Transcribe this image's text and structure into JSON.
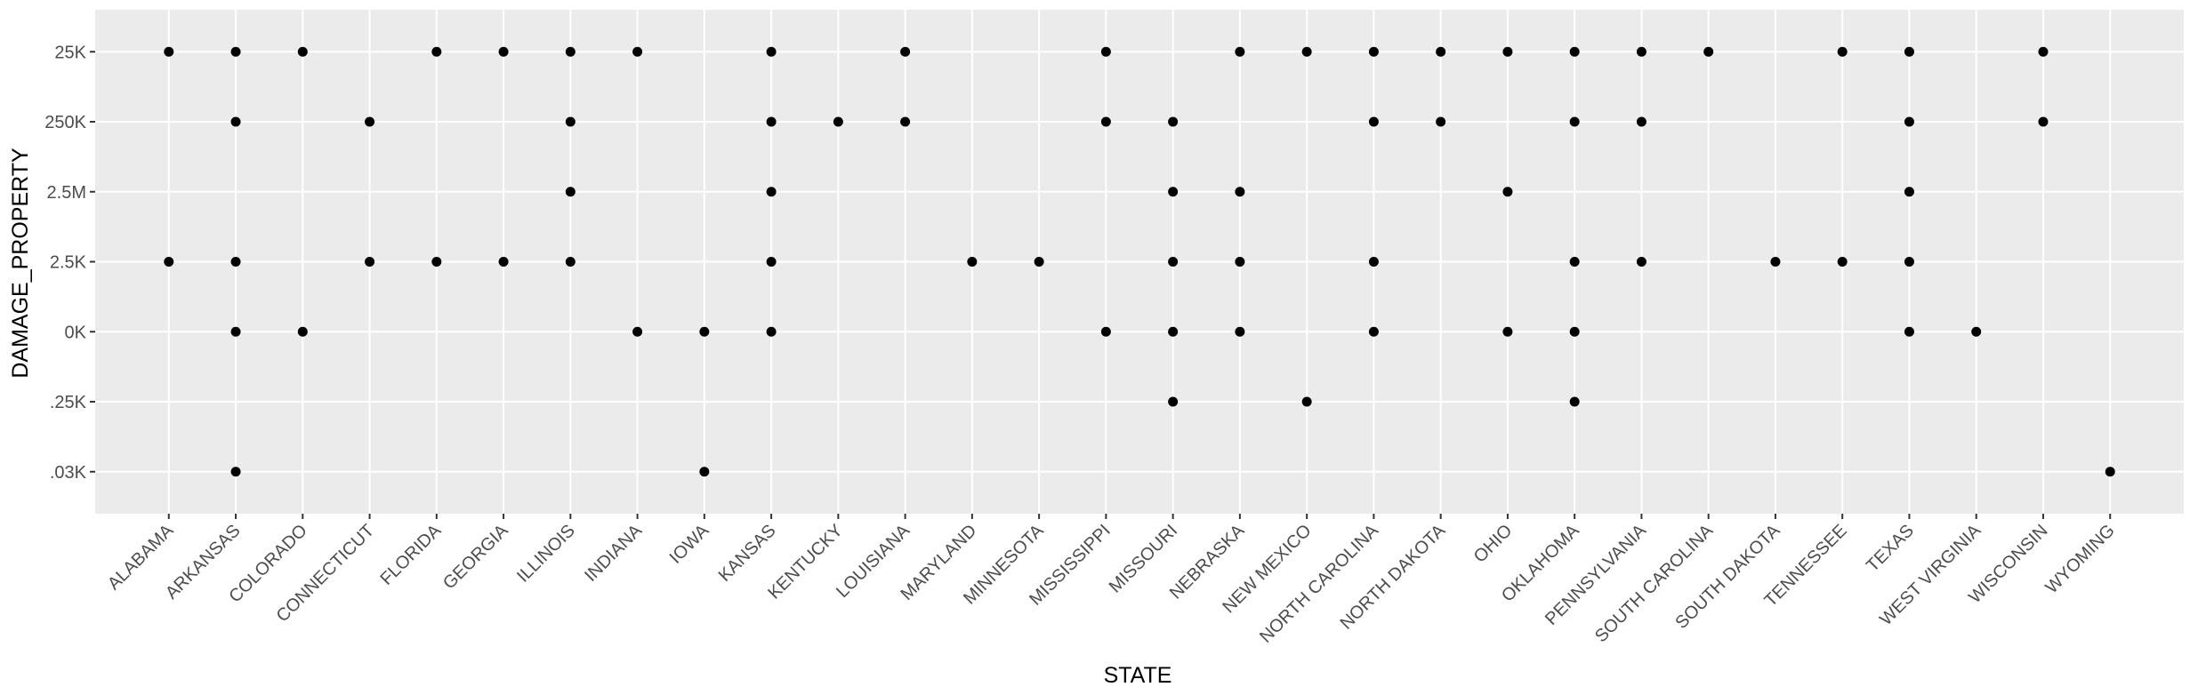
{
  "chart_data": {
    "type": "scatter",
    "xlabel": "STATE",
    "ylabel": "DAMAGE_PROPERTY",
    "grid": true,
    "categories": [
      "ALABAMA",
      "ARKANSAS",
      "COLORADO",
      "CONNECTICUT",
      "FLORIDA",
      "GEORGIA",
      "ILLINOIS",
      "INDIANA",
      "IOWA",
      "KANSAS",
      "KENTUCKY",
      "LOUISIANA",
      "MARYLAND",
      "MINNESOTA",
      "MISSISSIPPI",
      "MISSOURI",
      "NEBRASKA",
      "NEW MEXICO",
      "NORTH CAROLINA",
      "NORTH DAKOTA",
      "OHIO",
      "OKLAHOMA",
      "PENNSYLVANIA",
      "SOUTH CAROLINA",
      "SOUTH DAKOTA",
      "TENNESSEE",
      "TEXAS",
      "WEST VIRGINIA",
      "WISCONSIN",
      "WYOMING"
    ],
    "y_levels": [
      ".03K",
      ".25K",
      "0K",
      "2.5K",
      "2.5M",
      "250K",
      "25K"
    ],
    "points": [
      {
        "x": "ALABAMA",
        "y": "25K"
      },
      {
        "x": "ALABAMA",
        "y": "2.5K"
      },
      {
        "x": "ARKANSAS",
        "y": "25K"
      },
      {
        "x": "ARKANSAS",
        "y": "250K"
      },
      {
        "x": "ARKANSAS",
        "y": "2.5K"
      },
      {
        "x": "ARKANSAS",
        "y": "0K"
      },
      {
        "x": "ARKANSAS",
        "y": ".03K"
      },
      {
        "x": "COLORADO",
        "y": "25K"
      },
      {
        "x": "COLORADO",
        "y": "0K"
      },
      {
        "x": "CONNECTICUT",
        "y": "250K"
      },
      {
        "x": "CONNECTICUT",
        "y": "2.5K"
      },
      {
        "x": "FLORIDA",
        "y": "25K"
      },
      {
        "x": "FLORIDA",
        "y": "2.5K"
      },
      {
        "x": "GEORGIA",
        "y": "25K"
      },
      {
        "x": "GEORGIA",
        "y": "2.5K"
      },
      {
        "x": "ILLINOIS",
        "y": "25K"
      },
      {
        "x": "ILLINOIS",
        "y": "250K"
      },
      {
        "x": "ILLINOIS",
        "y": "2.5M"
      },
      {
        "x": "ILLINOIS",
        "y": "2.5K"
      },
      {
        "x": "INDIANA",
        "y": "25K"
      },
      {
        "x": "INDIANA",
        "y": "0K"
      },
      {
        "x": "IOWA",
        "y": "0K"
      },
      {
        "x": "IOWA",
        "y": ".03K"
      },
      {
        "x": "KANSAS",
        "y": "25K"
      },
      {
        "x": "KANSAS",
        "y": "250K"
      },
      {
        "x": "KANSAS",
        "y": "2.5M"
      },
      {
        "x": "KANSAS",
        "y": "2.5K"
      },
      {
        "x": "KANSAS",
        "y": "0K"
      },
      {
        "x": "KENTUCKY",
        "y": "250K"
      },
      {
        "x": "LOUISIANA",
        "y": "25K"
      },
      {
        "x": "LOUISIANA",
        "y": "250K"
      },
      {
        "x": "MARYLAND",
        "y": "2.5K"
      },
      {
        "x": "MINNESOTA",
        "y": "2.5K"
      },
      {
        "x": "MISSISSIPPI",
        "y": "25K"
      },
      {
        "x": "MISSISSIPPI",
        "y": "250K"
      },
      {
        "x": "MISSISSIPPI",
        "y": "0K"
      },
      {
        "x": "MISSOURI",
        "y": "250K"
      },
      {
        "x": "MISSOURI",
        "y": "2.5M"
      },
      {
        "x": "MISSOURI",
        "y": "2.5K"
      },
      {
        "x": "MISSOURI",
        "y": "0K"
      },
      {
        "x": "MISSOURI",
        "y": ".25K"
      },
      {
        "x": "NEBRASKA",
        "y": "25K"
      },
      {
        "x": "NEBRASKA",
        "y": "2.5M"
      },
      {
        "x": "NEBRASKA",
        "y": "2.5K"
      },
      {
        "x": "NEBRASKA",
        "y": "0K"
      },
      {
        "x": "NEW MEXICO",
        "y": "25K"
      },
      {
        "x": "NEW MEXICO",
        "y": ".25K"
      },
      {
        "x": "NORTH CAROLINA",
        "y": "25K"
      },
      {
        "x": "NORTH CAROLINA",
        "y": "250K"
      },
      {
        "x": "NORTH CAROLINA",
        "y": "2.5K"
      },
      {
        "x": "NORTH CAROLINA",
        "y": "0K"
      },
      {
        "x": "NORTH DAKOTA",
        "y": "25K"
      },
      {
        "x": "NORTH DAKOTA",
        "y": "250K"
      },
      {
        "x": "OHIO",
        "y": "25K"
      },
      {
        "x": "OHIO",
        "y": "2.5M"
      },
      {
        "x": "OHIO",
        "y": "0K"
      },
      {
        "x": "OKLAHOMA",
        "y": "25K"
      },
      {
        "x": "OKLAHOMA",
        "y": "250K"
      },
      {
        "x": "OKLAHOMA",
        "y": "2.5K"
      },
      {
        "x": "OKLAHOMA",
        "y": "0K"
      },
      {
        "x": "OKLAHOMA",
        "y": ".25K"
      },
      {
        "x": "PENNSYLVANIA",
        "y": "25K"
      },
      {
        "x": "PENNSYLVANIA",
        "y": "250K"
      },
      {
        "x": "PENNSYLVANIA",
        "y": "2.5K"
      },
      {
        "x": "SOUTH CAROLINA",
        "y": "25K"
      },
      {
        "x": "SOUTH DAKOTA",
        "y": "2.5K"
      },
      {
        "x": "TENNESSEE",
        "y": "25K"
      },
      {
        "x": "TENNESSEE",
        "y": "2.5K"
      },
      {
        "x": "TEXAS",
        "y": "25K"
      },
      {
        "x": "TEXAS",
        "y": "250K"
      },
      {
        "x": "TEXAS",
        "y": "2.5M"
      },
      {
        "x": "TEXAS",
        "y": "2.5K"
      },
      {
        "x": "TEXAS",
        "y": "0K"
      },
      {
        "x": "WEST VIRGINIA",
        "y": "0K"
      },
      {
        "x": "WISCONSIN",
        "y": "25K"
      },
      {
        "x": "WISCONSIN",
        "y": "250K"
      },
      {
        "x": "WYOMING",
        "y": ".03K"
      }
    ]
  }
}
